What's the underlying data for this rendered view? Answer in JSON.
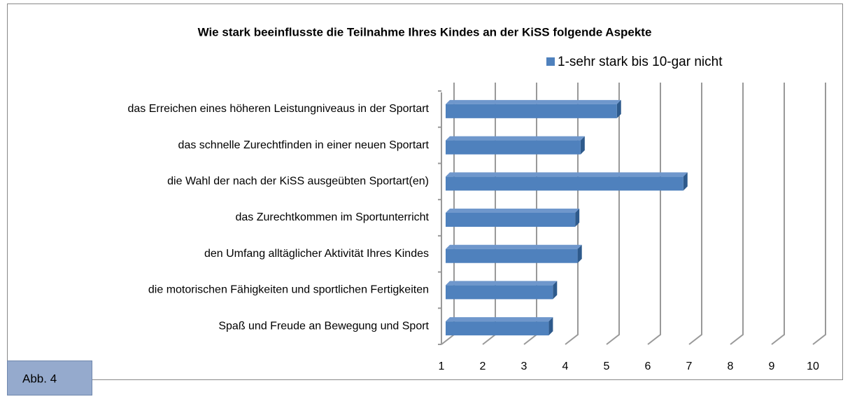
{
  "chart_data": {
    "type": "bar",
    "orientation": "horizontal",
    "title": "Wie stark beeinflusste die Teilnahme Ihres Kindes an der KiSS folgende Aspekte",
    "categories": [
      "das Erreichen eines höheren Leistungniveaus in der Sportart",
      "das schnelle Zurechtfinden in einer neuen Sportart",
      "die Wahl der nach der KiSS ausgeübten Sportart(en)",
      "das Zurechtkommen im Sportunterricht",
      "den Umfang alltäglicher Aktivität Ihres Kindes",
      "die motorischen Fähigkeiten und sportlichen Fertigkeiten",
      "Spaß und Freude an Bewegung und Sport"
    ],
    "series": [
      {
        "name": "1-sehr stark bis 10-gar nicht",
        "color": "#4f81bd",
        "values": [
          5.25,
          4.37,
          6.86,
          4.24,
          4.3,
          3.7,
          3.6
        ]
      }
    ],
    "xlim": [
      1,
      10
    ],
    "xticks": [
      1,
      2,
      3,
      4,
      5,
      6,
      7,
      8,
      9,
      10
    ],
    "grid": true,
    "legend": "top-right"
  },
  "caption": "Abb. 4"
}
